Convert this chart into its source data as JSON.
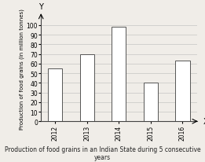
{
  "categories": [
    "2012",
    "2013",
    "2014",
    "2015",
    "2016"
  ],
  "values": [
    55,
    70,
    98,
    40,
    63
  ],
  "bar_color": "#ffffff",
  "bar_edgecolor": "#555555",
  "title": "Production of food grains in an Indian State during 5 consecutive years",
  "ylabel": "Production of food grains (in million tonnes)",
  "xlabel_text": "X",
  "ylabel_text": "Y",
  "ylim": [
    0,
    110
  ],
  "yticks": [
    0,
    10,
    20,
    30,
    40,
    50,
    60,
    70,
    80,
    90,
    100
  ],
  "background_color": "#f0ede8",
  "title_fontsize": 5.5,
  "axis_letter_fontsize": 7,
  "tick_fontsize": 5.5,
  "ylabel_fontsize": 5.0,
  "bar_width": 0.45,
  "grid_color": "#bbbbbb",
  "spine_color": "#444444"
}
